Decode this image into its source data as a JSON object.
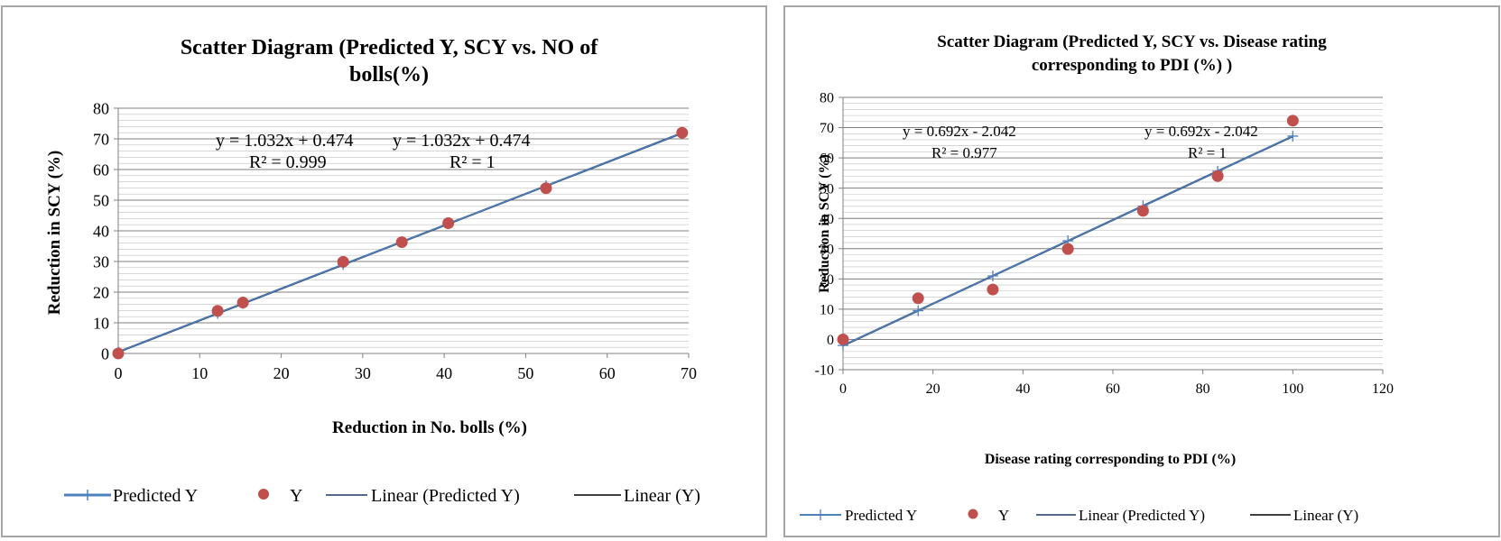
{
  "chart_data": [
    {
      "type": "scatter",
      "title_line1": "Scatter Diagram (Predicted Y, SCY  vs. NO of",
      "title_line2": "bolls(%)",
      "xlabel": "Reduction in No. bolls (%)",
      "ylabel": "Reduction in SCY (%)",
      "xlim": [
        0,
        70
      ],
      "ylim": [
        0,
        80
      ],
      "xticks": [
        "0",
        "10",
        "20",
        "30",
        "40",
        "50",
        "60",
        "70"
      ],
      "yticks": [
        "0",
        "10",
        "20",
        "30",
        "40",
        "50",
        "60",
        "70",
        "80"
      ],
      "grid": true,
      "legend_position": "bottom",
      "series": [
        {
          "name": "Predicted Y",
          "marker": "plus",
          "color": "#4f81bd",
          "connect": true,
          "x": [
            0,
            12.2,
            15.3,
            27.6,
            34.8,
            40.5,
            52.5,
            69.2
          ],
          "y": [
            0.5,
            13.1,
            16.3,
            29.0,
            36.4,
            42.3,
            54.7,
            71.9
          ]
        },
        {
          "name": "Y",
          "marker": "circle",
          "color": "#c0504d",
          "connect": false,
          "x": [
            0,
            12.2,
            15.3,
            27.6,
            34.8,
            40.5,
            52.5,
            69.2
          ],
          "y": [
            0,
            13.9,
            16.6,
            29.9,
            36.3,
            42.5,
            53.9,
            72.0
          ]
        }
      ],
      "trendlines": [
        {
          "name": "Linear (Predicted Y)",
          "color": "#1f3864",
          "slope": 1.032,
          "intercept": 0.474
        },
        {
          "name": "Linear (Y)",
          "color": "#000000",
          "slope": 1.032,
          "intercept": 0.474
        }
      ],
      "annotations": [
        {
          "eq": "y = 1.032x + 0.474",
          "r2": "R² = 0.999"
        },
        {
          "eq": "y = 1.032x + 0.474",
          "r2": "R² = 1"
        }
      ]
    },
    {
      "type": "scatter",
      "title_line1": "Scatter Diagram  (Predicted Y, SCY  vs. Disease rating",
      "title_line2": "corresponding to PDI (%) )",
      "xlabel": "Disease rating corresponding to PDI (%)",
      "ylabel": "Reduction in SCY (%)",
      "xlim": [
        0,
        120
      ],
      "ylim": [
        -10,
        80
      ],
      "xticks": [
        "0",
        "20",
        "40",
        "60",
        "80",
        "100",
        "120"
      ],
      "yticks": [
        "-10",
        "0",
        "10",
        "20",
        "30",
        "40",
        "50",
        "60",
        "70",
        "80"
      ],
      "grid": true,
      "legend_position": "bottom",
      "series": [
        {
          "name": "Predicted Y",
          "marker": "plus",
          "color": "#4f81bd",
          "connect": true,
          "x": [
            0,
            16.7,
            33.3,
            50,
            66.7,
            83.3,
            100
          ],
          "y": [
            -2.0,
            9.5,
            21.0,
            32.6,
            44.1,
            55.6,
            67.2
          ]
        },
        {
          "name": "Y",
          "marker": "circle",
          "color": "#c0504d",
          "connect": false,
          "x": [
            0,
            16.7,
            33.3,
            50,
            66.7,
            83.3,
            100
          ],
          "y": [
            0,
            13.6,
            16.5,
            29.9,
            42.5,
            54.0,
            72.3
          ]
        }
      ],
      "trendlines": [
        {
          "name": "Linear (Predicted Y)",
          "color": "#1f3864",
          "slope": 0.692,
          "intercept": -2.042
        },
        {
          "name": "Linear (Y)",
          "color": "#000000",
          "slope": 0.692,
          "intercept": -2.042
        }
      ],
      "annotations": [
        {
          "eq": "y = 0.692x - 2.042",
          "r2": "R² = 0.977"
        },
        {
          "eq": "y = 0.692x - 2.042",
          "r2": "R² = 1"
        }
      ]
    }
  ]
}
